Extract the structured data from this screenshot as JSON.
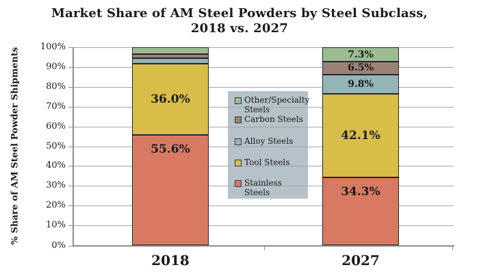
{
  "title": {
    "line1": "Market Share of AM Steel Powders by Steel Subclass,",
    "line2": "2018 vs. 2027"
  },
  "y_axis": {
    "label": "% Share of AM Steel Powder Shipments",
    "ticks": [
      "0%",
      "10%",
      "20%",
      "30%",
      "40%",
      "50%",
      "60%",
      "70%",
      "80%",
      "90%",
      "100%"
    ]
  },
  "x_axis": {
    "categories": [
      "2018",
      "2027"
    ]
  },
  "legend": {
    "items": [
      {
        "label": "Other/Specialty Steels",
        "color": "#9cbc93"
      },
      {
        "label": "Carbon Steels",
        "color": "#9a8278"
      },
      {
        "label": "Alloy Steels",
        "color": "#95b4b8"
      },
      {
        "label": "Tool Steels",
        "color": "#d8bd49"
      },
      {
        "label": "Stainless Steels",
        "color": "#d87a63"
      }
    ]
  },
  "chart_data": {
    "type": "bar",
    "stacked": true,
    "title": "Market Share of AM Steel Powders by Steel Subclass, 2018 vs. 2027",
    "ylabel": "% Share of AM Steel Powder Shipments",
    "ylim": [
      0,
      100
    ],
    "y_tick_step": 10,
    "grid": true,
    "legend_position": "inside-center-right",
    "categories": [
      "2018",
      "2027"
    ],
    "series": [
      {
        "name": "Stainless Steels",
        "color": "#d87a63",
        "values": [
          55.6,
          34.3
        ],
        "labels": [
          "55.6%",
          "34.3%"
        ]
      },
      {
        "name": "Tool Steels",
        "color": "#d8bd49",
        "values": [
          36.0,
          42.1
        ],
        "labels": [
          "36.0%",
          "42.1%"
        ]
      },
      {
        "name": "Alloy Steels",
        "color": "#95b4b8",
        "values": [
          2.9,
          9.8
        ],
        "labels": [
          "",
          "9.8%"
        ]
      },
      {
        "name": "Carbon Steels",
        "color": "#9a8278",
        "values": [
          2.0,
          6.5
        ],
        "labels": [
          "",
          "6.5%"
        ]
      },
      {
        "name": "Other/Specialty Steels",
        "color": "#9cbc93",
        "values": [
          3.5,
          7.3
        ],
        "labels": [
          "",
          "7.3%"
        ]
      }
    ],
    "colors": {
      "gridline": "#a6a6a6",
      "axis": "#8c8c8c",
      "segment_border": "#262626",
      "legend_background": "#b5c2ca",
      "text": "#1a1a1a"
    }
  }
}
